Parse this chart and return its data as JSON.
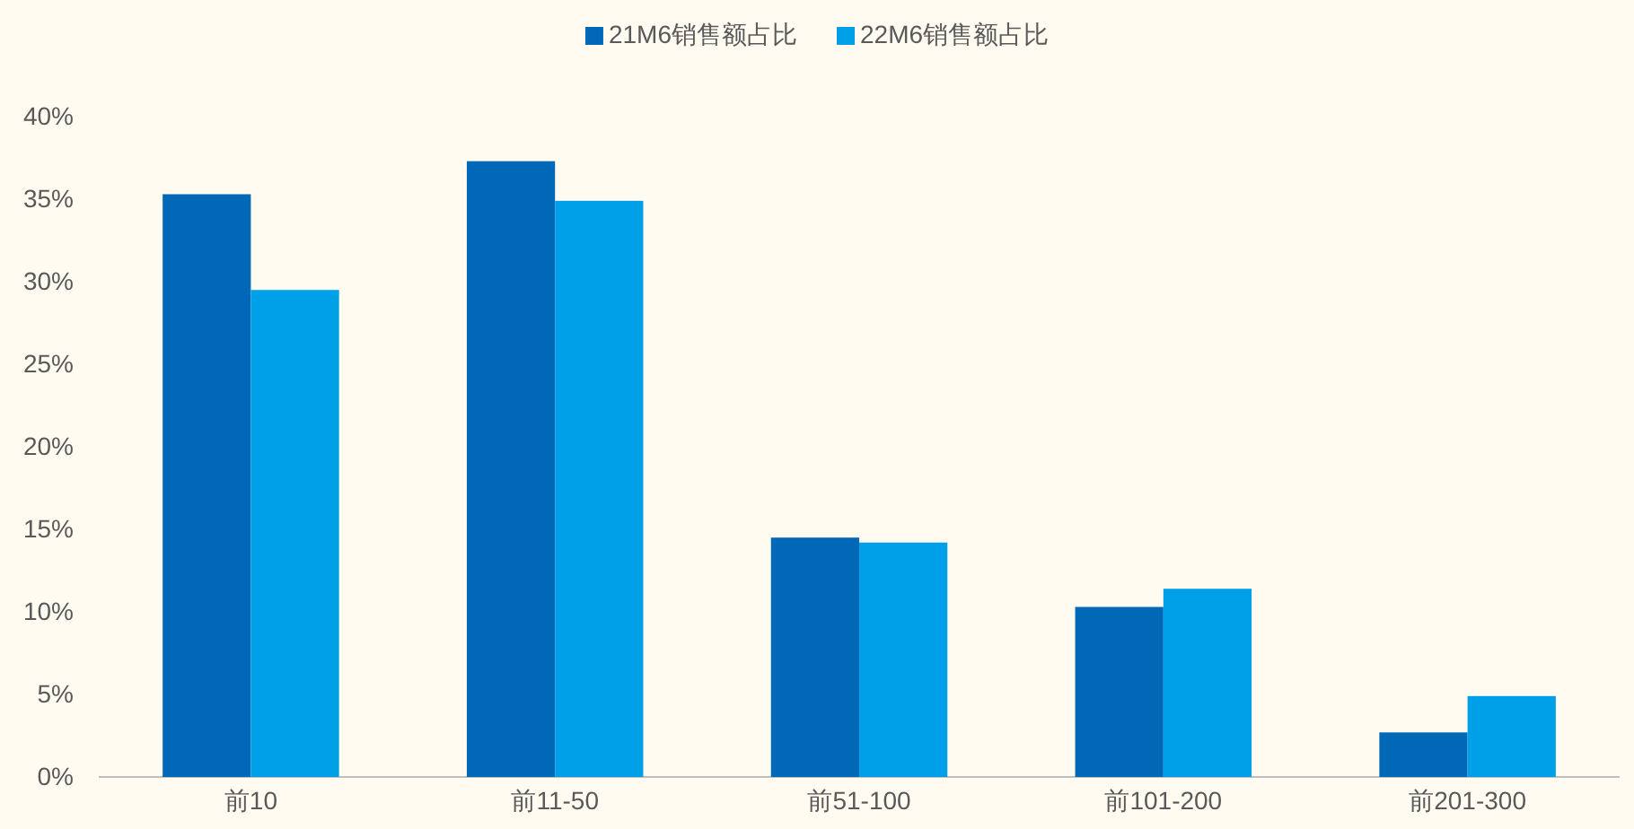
{
  "chart_data": {
    "type": "bar",
    "categories": [
      "前10",
      "前11-50",
      "前51-100",
      "前101-200",
      "前201-300"
    ],
    "series": [
      {
        "name": "21M6销售额占比",
        "color": "#0068b7",
        "values": [
          35.3,
          37.3,
          14.5,
          10.3,
          2.7
        ]
      },
      {
        "name": "22M6销售额占比",
        "color": "#00a0e9",
        "values": [
          29.5,
          34.9,
          14.2,
          11.4,
          4.9
        ]
      }
    ],
    "ylim": [
      0,
      40
    ],
    "yticks": [
      {
        "value": 0,
        "label": "0%"
      },
      {
        "value": 5,
        "label": "5%"
      },
      {
        "value": 10,
        "label": "10%"
      },
      {
        "value": 15,
        "label": "15%"
      },
      {
        "value": 20,
        "label": "20%"
      },
      {
        "value": 25,
        "label": "25%"
      },
      {
        "value": 30,
        "label": "30%"
      },
      {
        "value": 35,
        "label": "35%"
      },
      {
        "value": 40,
        "label": "40%"
      }
    ],
    "grid": false,
    "legend": "top"
  }
}
